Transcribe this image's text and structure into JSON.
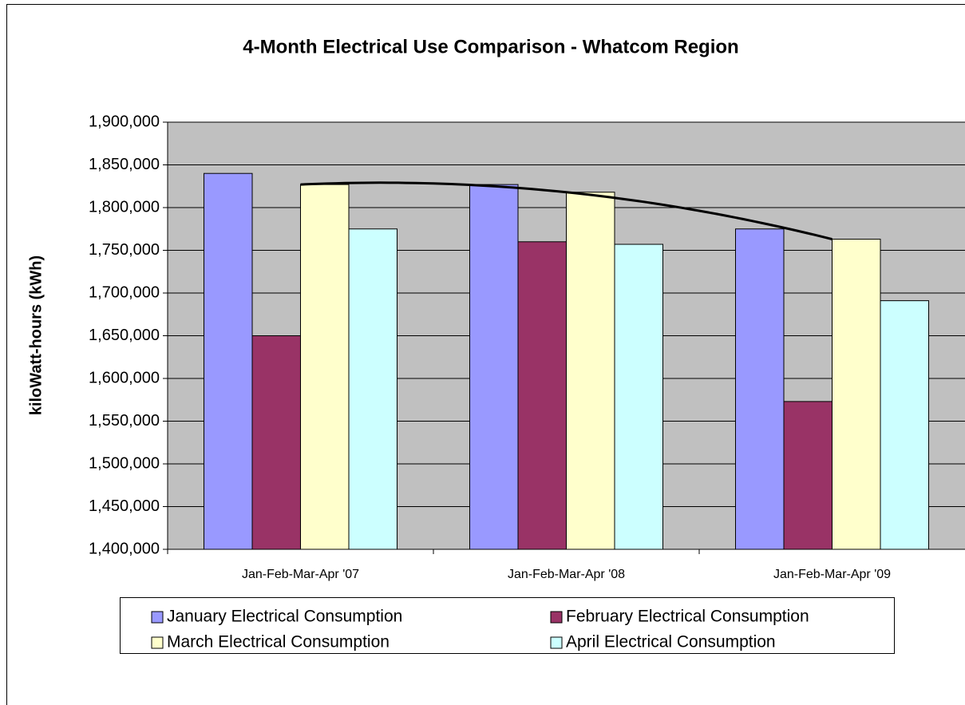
{
  "chart_data": {
    "type": "bar",
    "title": "4-Month Electrical Use Comparison - Whatcom Region",
    "y_label": "kiloWatt-hours (kWh)",
    "categories": [
      "Jan-Feb-Mar-Apr '07",
      "Jan-Feb-Mar-Apr '08",
      "Jan-Feb-Mar-Apr '09"
    ],
    "series": [
      {
        "name": "January Electrical Consumption",
        "color": "#9999ff",
        "values": [
          1840000,
          1827000,
          1775000
        ]
      },
      {
        "name": "February Electrical Consumption",
        "color": "#993366",
        "values": [
          1650000,
          1760000,
          1573000
        ]
      },
      {
        "name": "March Electrical Consumption",
        "color": "#ffffcc",
        "values": [
          1827000,
          1818000,
          1763000
        ]
      },
      {
        "name": "April Electrical Consumption",
        "color": "#ccffff",
        "values": [
          1775000,
          1757000,
          1691000
        ]
      }
    ],
    "trendline_series": 2,
    "ylim": [
      1400000,
      1900000
    ],
    "yticks": [
      {
        "value": 1400000,
        "label": "1,400,000"
      },
      {
        "value": 1450000,
        "label": "1,450,000"
      },
      {
        "value": 1500000,
        "label": "1,500,000"
      },
      {
        "value": 1550000,
        "label": "1,550,000"
      },
      {
        "value": 1600000,
        "label": "1,600,000"
      },
      {
        "value": 1650000,
        "label": "1,650,000"
      },
      {
        "value": 1700000,
        "label": "1,700,000"
      },
      {
        "value": 1750000,
        "label": "1,750,000"
      },
      {
        "value": 1800000,
        "label": "1,800,000"
      },
      {
        "value": 1850000,
        "label": "1,850,000"
      },
      {
        "value": 1900000,
        "label": "1,900,000"
      }
    ],
    "grid": true,
    "plot_background": "#c0c0c0"
  }
}
